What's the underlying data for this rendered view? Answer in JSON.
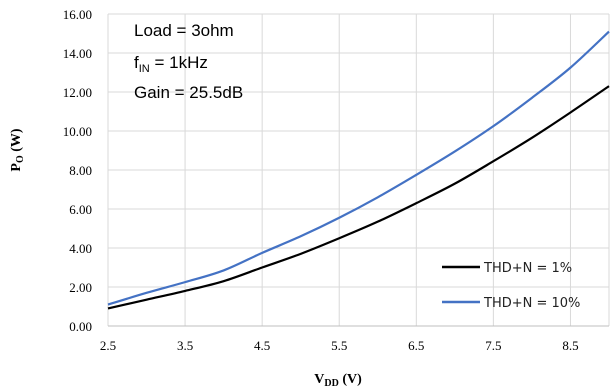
{
  "chart_data": {
    "type": "line",
    "title": "",
    "xlabel": {
      "main": "V",
      "sub": "DD",
      "unit": " (V)"
    },
    "ylabel": {
      "main": "P",
      "sub": "O",
      "unit": " (W)"
    },
    "xlim": [
      2.5,
      9.0
    ],
    "ylim": [
      0.0,
      16.0
    ],
    "xticks": [
      2.5,
      3.5,
      4.5,
      5.5,
      6.5,
      7.5,
      8.5
    ],
    "xtick_labels": [
      "2.5",
      "3.5",
      "4.5",
      "5.5",
      "6.5",
      "7.5",
      "8.5"
    ],
    "yticks": [
      0,
      2,
      4,
      6,
      8,
      10,
      12,
      14,
      16
    ],
    "ytick_labels": [
      "0.00",
      "2.00",
      "4.00",
      "6.00",
      "8.00",
      "10.00",
      "12.00",
      "14.00",
      "16.00"
    ],
    "grid": "vertical",
    "annotations": {
      "load": "Load = 3ohm",
      "fin_main": "f",
      "fin_sub": "IN",
      "fin_rest": " = 1kHz",
      "gain": "Gain = 25.5dB"
    },
    "legend_position": "bottom-right",
    "series": [
      {
        "name": "THD+N = 1%",
        "color": "#000000",
        "x": [
          2.5,
          3.0,
          3.5,
          4.0,
          4.5,
          5.0,
          5.5,
          6.0,
          6.5,
          7.0,
          7.5,
          8.0,
          8.5,
          9.0
        ],
        "y": [
          0.9,
          1.35,
          1.8,
          2.3,
          3.0,
          3.7,
          4.5,
          5.35,
          6.3,
          7.3,
          8.45,
          9.65,
          10.95,
          12.3
        ]
      },
      {
        "name": "THD+N = 10%",
        "color": "#4472c4",
        "x": [
          2.5,
          3.0,
          3.5,
          4.0,
          4.5,
          5.0,
          5.5,
          6.0,
          6.5,
          7.0,
          7.5,
          8.0,
          8.5,
          9.0
        ],
        "y": [
          1.1,
          1.7,
          2.25,
          2.85,
          3.75,
          4.6,
          5.55,
          6.6,
          7.75,
          8.95,
          10.25,
          11.7,
          13.25,
          15.1
        ]
      }
    ]
  }
}
